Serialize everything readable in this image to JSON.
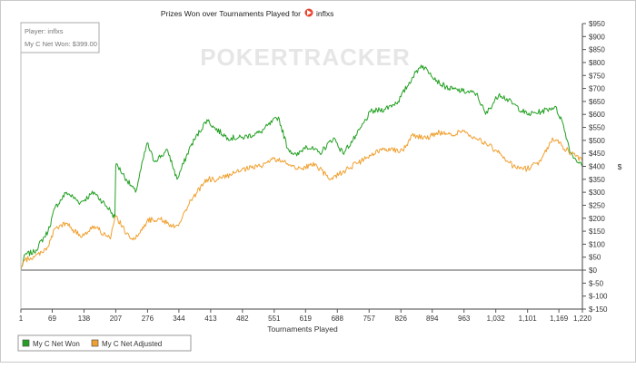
{
  "chart_data": {
    "type": "line",
    "title": "Prizes Won over Tournaments Played for",
    "player_name": "inflxs",
    "watermark": "POKERTRACKER",
    "info_box": {
      "player_line": "Player: inflxs",
      "net_won_line": "My C Net Won: $399.00"
    },
    "xlabel": "Tournaments Played",
    "ylabel": "$",
    "xlim": [
      1,
      1220
    ],
    "ylim": [
      -150,
      950
    ],
    "x_ticks": [
      1,
      69,
      138,
      207,
      276,
      344,
      413,
      482,
      551,
      619,
      688,
      757,
      826,
      894,
      963,
      1032,
      1101,
      1169,
      1220
    ],
    "x_tick_labels": [
      "1",
      "69",
      "138",
      "207",
      "276",
      "344",
      "413",
      "482",
      "551",
      "619",
      "688",
      "757",
      "826",
      "894",
      "963",
      "1,032",
      "1,101",
      "1,169",
      "1,220"
    ],
    "y_ticks": [
      -150,
      -100,
      -50,
      0,
      50,
      100,
      150,
      200,
      250,
      300,
      350,
      400,
      450,
      500,
      550,
      600,
      650,
      700,
      750,
      800,
      850,
      900,
      950
    ],
    "y_tick_labels": [
      "$-150",
      "$-100",
      "$-50",
      "$0",
      "$50",
      "$100",
      "$150",
      "$200",
      "$250",
      "$300",
      "$350",
      "$400",
      "$450",
      "$500",
      "$550",
      "$600",
      "$650",
      "$700",
      "$750",
      "$800",
      "$850",
      "$900",
      "$950"
    ],
    "legend_position": "bottom-left",
    "series": [
      {
        "name": "My C Net Won",
        "color": "#22a022",
        "x": [
          1,
          10,
          30,
          60,
          75,
          100,
          130,
          160,
          195,
          205,
          207,
          208,
          230,
          250,
          275,
          290,
          320,
          340,
          370,
          405,
          420,
          450,
          480,
          520,
          560,
          580,
          600,
          620,
          650,
          680,
          700,
          730,
          760,
          790,
          820,
          850,
          870,
          890,
          910,
          930,
          960,
          990,
          1010,
          1040,
          1070,
          1100,
          1130,
          1160,
          1175,
          1195,
          1220
        ],
        "y": [
          0,
          60,
          70,
          150,
          240,
          300,
          260,
          300,
          230,
          200,
          400,
          410,
          350,
          300,
          490,
          420,
          460,
          350,
          480,
          580,
          550,
          510,
          510,
          530,
          590,
          470,
          440,
          480,
          450,
          510,
          450,
          520,
          610,
          620,
          650,
          740,
          790,
          760,
          720,
          700,
          690,
          680,
          600,
          680,
          640,
          600,
          610,
          630,
          580,
          450,
          399
        ]
      },
      {
        "name": "My C Net Adjusted",
        "color": "#f0a030",
        "x": [
          1,
          10,
          30,
          60,
          75,
          100,
          130,
          160,
          195,
          207,
          230,
          250,
          275,
          300,
          330,
          345,
          370,
          405,
          430,
          460,
          490,
          520,
          550,
          580,
          610,
          640,
          670,
          700,
          730,
          760,
          790,
          830,
          850,
          880,
          910,
          940,
          960,
          980,
          1010,
          1040,
          1070,
          1100,
          1130,
          1155,
          1175,
          1195,
          1220
        ],
        "y": [
          0,
          40,
          50,
          90,
          160,
          180,
          130,
          170,
          120,
          210,
          140,
          120,
          190,
          200,
          170,
          180,
          270,
          350,
          350,
          370,
          390,
          400,
          430,
          410,
          390,
          410,
          350,
          380,
          410,
          440,
          470,
          460,
          520,
          510,
          530,
          520,
          540,
          510,
          490,
          450,
          400,
          390,
          420,
          510,
          480,
          450,
          420
        ]
      }
    ]
  }
}
